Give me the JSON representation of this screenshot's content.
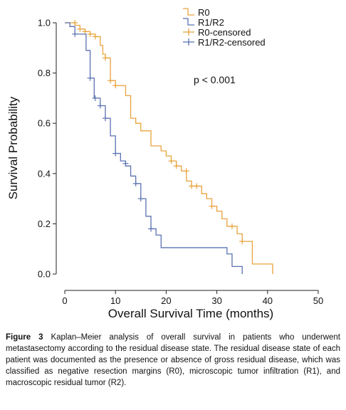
{
  "caption": {
    "label": "Figure 3",
    "text": "Kaplan–Meier analysis of overall survival in patients who underwent metastasectomy according to the residual disease state. The residual disease state of each patient was documented as the presence or absence of gross residual disease, which was classified as negative resection margins (R0), microscopic tumor infiltration (R1), and macroscopic residual tumor (R2)."
  },
  "chart_data": {
    "type": "line",
    "subtype": "kaplan-meier",
    "title": "",
    "xlabel": "Overall Survival Time (months)",
    "ylabel": "Survival Probability",
    "xlim": [
      0,
      50
    ],
    "ylim": [
      0,
      1.0
    ],
    "x_ticks": [
      "0",
      "10",
      "20",
      "30",
      "40",
      "50"
    ],
    "y_ticks": [
      "0.0",
      "0.2",
      "0.4",
      "0.6",
      "0.8",
      "1.0"
    ],
    "annotation": "p < 0.001",
    "grid": false,
    "legend_position": "top-right",
    "legend": [
      {
        "label": "R0",
        "style": "step",
        "color": "#E8A33C"
      },
      {
        "label": "R1/R2",
        "style": "step",
        "color": "#5B72B2"
      },
      {
        "label": "R0-censored",
        "style": "censor",
        "color": "#E8A33C"
      },
      {
        "label": "R1/R2-censored",
        "style": "censor",
        "color": "#5B72B2"
      }
    ],
    "series": [
      {
        "name": "R0",
        "color": "#E8A33C",
        "steps": [
          [
            0,
            1.0
          ],
          [
            1,
            1.0
          ],
          [
            2,
            0.99
          ],
          [
            3,
            0.975
          ],
          [
            4,
            0.965
          ],
          [
            5,
            0.955
          ],
          [
            6,
            0.945
          ],
          [
            7,
            0.91
          ],
          [
            7.5,
            0.875
          ],
          [
            8,
            0.86
          ],
          [
            9,
            0.77
          ],
          [
            10,
            0.75
          ],
          [
            11,
            0.75
          ],
          [
            12,
            0.71
          ],
          [
            13,
            0.62
          ],
          [
            14,
            0.6
          ],
          [
            15,
            0.57
          ],
          [
            17,
            0.51
          ],
          [
            19,
            0.49
          ],
          [
            20,
            0.47
          ],
          [
            21,
            0.45
          ],
          [
            22,
            0.43
          ],
          [
            23,
            0.41
          ],
          [
            24,
            0.37
          ],
          [
            25,
            0.35
          ],
          [
            27,
            0.32
          ],
          [
            28,
            0.3
          ],
          [
            29,
            0.27
          ],
          [
            30,
            0.25
          ],
          [
            31,
            0.22
          ],
          [
            32,
            0.19
          ],
          [
            34,
            0.16
          ],
          [
            35,
            0.13
          ],
          [
            37,
            0.04
          ],
          [
            41,
            0.0
          ]
        ],
        "end_x": 41,
        "censored": [
          [
            2,
            1.0
          ],
          [
            3,
            0.975
          ],
          [
            4,
            0.965
          ],
          [
            5,
            0.955
          ],
          [
            6,
            0.945
          ],
          [
            8,
            0.86
          ],
          [
            9,
            0.77
          ],
          [
            10,
            0.75
          ],
          [
            21,
            0.45
          ],
          [
            22,
            0.43
          ],
          [
            24,
            0.41
          ],
          [
            25,
            0.35
          ],
          [
            26,
            0.35
          ],
          [
            29,
            0.27
          ],
          [
            33,
            0.19
          ],
          [
            35,
            0.13
          ]
        ]
      },
      {
        "name": "R1/R2",
        "color": "#5B72B2",
        "steps": [
          [
            0,
            1.0
          ],
          [
            1,
            0.985
          ],
          [
            2,
            0.955
          ],
          [
            4,
            0.955
          ],
          [
            4.2,
            0.89
          ],
          [
            5,
            0.78
          ],
          [
            5.8,
            0.7
          ],
          [
            7,
            0.67
          ],
          [
            8,
            0.62
          ],
          [
            9,
            0.55
          ],
          [
            10,
            0.48
          ],
          [
            11,
            0.45
          ],
          [
            12,
            0.43
          ],
          [
            13,
            0.39
          ],
          [
            14,
            0.36
          ],
          [
            15,
            0.3
          ],
          [
            16,
            0.23
          ],
          [
            17,
            0.18
          ],
          [
            18,
            0.155
          ],
          [
            19,
            0.105
          ],
          [
            32,
            0.08
          ],
          [
            33,
            0.03
          ],
          [
            35,
            0.0
          ]
        ],
        "end_x": 35,
        "censored": [
          [
            2,
            0.955
          ],
          [
            5,
            0.78
          ],
          [
            6,
            0.7
          ],
          [
            7,
            0.67
          ],
          [
            8,
            0.62
          ],
          [
            10,
            0.48
          ],
          [
            12,
            0.44
          ],
          [
            14,
            0.36
          ],
          [
            15,
            0.3
          ],
          [
            17,
            0.18
          ]
        ]
      }
    ]
  }
}
